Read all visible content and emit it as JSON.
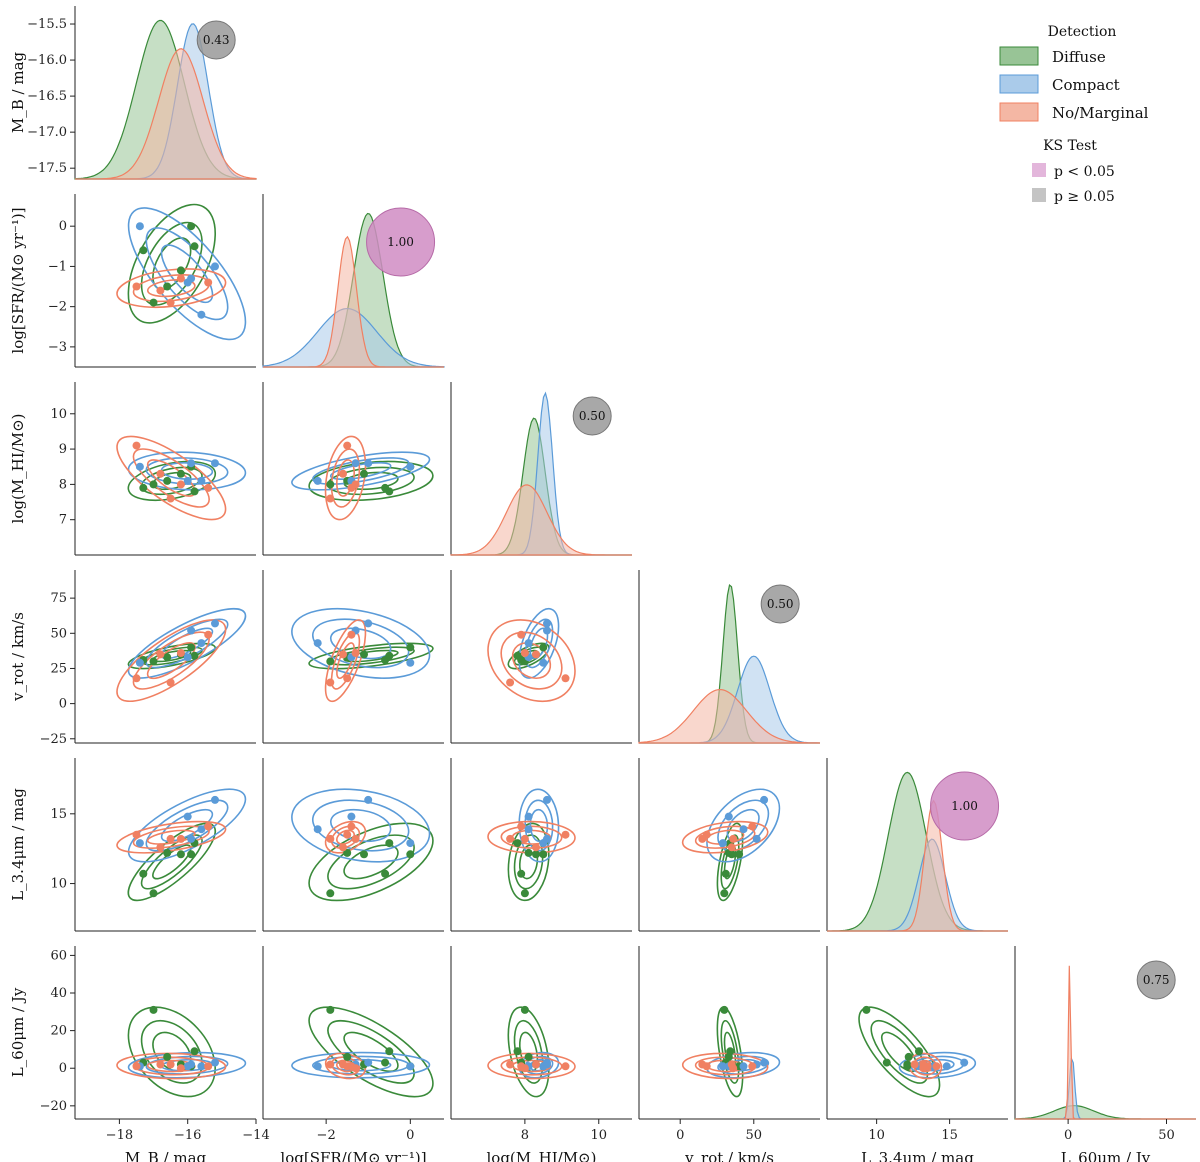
{
  "colors": {
    "diffuse": "#3a8a3a",
    "diffuse_fill": "#98c496",
    "compact": "#5b9bd8",
    "compact_fill": "#aacbea",
    "nomarg": "#f08062",
    "nomarg_fill": "#f4b7a4",
    "ks_sig": "#d08cc3",
    "ks_ns": "#999999"
  },
  "legend": {
    "title": "Detection",
    "items": [
      "Diffuse",
      "Compact",
      "No/Marginal"
    ],
    "ks_title": "KS Test",
    "ks_items": [
      "p < 0.05",
      "p ≥ 0.05"
    ]
  },
  "chart_data": {
    "type": "scatter",
    "description_series": [
      "Diffuse",
      "Compact",
      "No/Marginal"
    ],
    "variables": [
      {
        "xlabel": "M_B / mag",
        "ylabel": "M_B / mag",
        "range": [
          -19.3,
          -14.0
        ],
        "xticks": [
          -18,
          -16,
          -14
        ],
        "xticklabels": [
          "−18",
          "−16",
          "−14"
        ],
        "yticks": [
          -15.5,
          -16.0,
          -16.5,
          -17.0,
          -17.5
        ],
        "yticklabels": [
          "−15.5",
          "−16.0",
          "−16.5",
          "−17.0",
          "−17.5"
        ],
        "yinvert": true,
        "ylim_diag": [
          -17.65,
          -15.25
        ]
      },
      {
        "xlabel": "log[SFR/(M⊙ yr⁻¹)]",
        "ylabel": "log[SFR/(M⊙ yr⁻¹)]",
        "range": [
          -3.5,
          0.8
        ],
        "xticks": [
          -2,
          0
        ],
        "xticklabels": [
          "−2",
          "0"
        ],
        "yticks": [
          0,
          -1,
          -2,
          -3
        ],
        "yticklabels": [
          "0",
          "−1",
          "−2",
          "−3"
        ]
      },
      {
        "xlabel": "log(M_HI/M⊙)",
        "ylabel": "log(M_HI/M⊙)",
        "range": [
          6.0,
          10.9
        ],
        "xticks": [
          8,
          10
        ],
        "xticklabels": [
          "8",
          "10"
        ],
        "yticks": [
          10,
          9,
          8,
          7
        ],
        "yticklabels": [
          "10",
          "9",
          "8",
          "7"
        ]
      },
      {
        "xlabel": "v_rot / km/s",
        "ylabel": "v_rot / km/s",
        "range": [
          -28,
          95
        ],
        "xticks": [
          0,
          50
        ],
        "xticklabels": [
          "0",
          "50"
        ],
        "yticks": [
          75,
          50,
          25,
          0,
          -25
        ],
        "yticklabels": [
          "75",
          "50",
          "25",
          "0",
          "−25"
        ]
      },
      {
        "xlabel": "L_3.4μm / mag",
        "ylabel": "L_3.4μm / mag",
        "range": [
          6.6,
          19.0
        ],
        "xticks": [
          10,
          15
        ],
        "xticklabels": [
          "10",
          "15"
        ],
        "yticks": [
          15,
          10
        ],
        "yticklabels": [
          "15",
          "10"
        ]
      },
      {
        "xlabel": "L_60μm / Jy",
        "ylabel": "L_60μm / Jy",
        "range": [
          -27,
          65
        ],
        "xticks": [
          0,
          50
        ],
        "xticklabels": [
          "0",
          "50"
        ],
        "yticks": [
          60,
          40,
          20,
          0,
          -20
        ],
        "yticklabels": [
          "60",
          "40",
          "20",
          "0",
          "−20"
        ]
      }
    ],
    "ks_values": [
      "0.43",
      "1.00",
      "0.50",
      "0.50",
      "1.00",
      "0.75"
    ],
    "ks_significant": [
      false,
      true,
      false,
      false,
      true,
      false
    ],
    "points": {
      "Diffuse": [
        [
          -17.3,
          -0.6,
          7.9,
          31,
          10.7,
          3
        ],
        [
          -16.6,
          -1.5,
          8.1,
          33,
          12.2,
          6
        ],
        [
          -16.2,
          -1.1,
          8.3,
          35,
          12.1,
          2
        ],
        [
          -17.0,
          -1.9,
          8.0,
          30,
          9.3,
          31
        ],
        [
          -15.8,
          -0.5,
          7.8,
          34,
          12.9,
          9
        ],
        [
          -15.9,
          0.0,
          8.5,
          40,
          12.1,
          1
        ]
      ],
      "Compact": [
        [
          -17.4,
          0.0,
          8.5,
          29,
          12.9,
          1
        ],
        [
          -15.9,
          -1.3,
          8.6,
          52,
          13.2,
          2
        ],
        [
          -15.6,
          -2.2,
          8.1,
          43,
          13.9,
          1
        ],
        [
          -15.2,
          -1.0,
          8.6,
          57,
          16.0,
          3
        ],
        [
          -16.0,
          -1.4,
          8.1,
          33,
          14.8,
          1
        ]
      ],
      "No/Marginal": [
        [
          -17.5,
          -1.5,
          9.1,
          18,
          13.5,
          1
        ],
        [
          -16.5,
          -1.9,
          7.6,
          15,
          13.2,
          2
        ],
        [
          -16.2,
          -1.3,
          8.0,
          36,
          13.2,
          0
        ],
        [
          -15.4,
          -1.4,
          7.9,
          49,
          14.1,
          1
        ],
        [
          -16.8,
          -1.6,
          8.3,
          35,
          12.6,
          2
        ]
      ]
    },
    "densities": [
      {
        "Diffuse": {
          "mean": -16.8,
          "sd": 0.7,
          "peak": 0.95
        },
        "Compact": {
          "mean": -15.85,
          "sd": 0.45,
          "peak": 0.93
        },
        "No/Marginal": {
          "mean": -16.2,
          "sd": 0.65,
          "peak": 0.78
        }
      },
      {
        "Diffuse": {
          "mean": -1.0,
          "sd": 0.35,
          "peak": 0.92
        },
        "Compact": {
          "mean": -1.5,
          "sd": 0.7,
          "peak": 0.35
        },
        "No/Marginal": {
          "mean": -1.5,
          "sd": 0.22,
          "peak": 0.78
        }
      },
      {
        "Diffuse": {
          "mean": 8.25,
          "sd": 0.3,
          "peak": 0.82
        },
        "Compact": {
          "mean": 8.55,
          "sd": 0.2,
          "peak": 0.97
        },
        "No/Marginal": {
          "mean": 8.05,
          "sd": 0.55,
          "peak": 0.42
        }
      },
      {
        "Diffuse": {
          "mean": 34,
          "sd": 5,
          "peak": 0.95
        },
        "Compact": {
          "mean": 50,
          "sd": 11,
          "peak": 0.52
        },
        "No/Marginal": {
          "mean": 27,
          "sd": 18,
          "peak": 0.32
        }
      },
      {
        "Diffuse": {
          "mean": 12.1,
          "sd": 1.3,
          "peak": 0.95
        },
        "Compact": {
          "mean": 13.8,
          "sd": 0.9,
          "peak": 0.55
        },
        "No/Marginal": {
          "mean": 13.9,
          "sd": 0.6,
          "peak": 0.78
        }
      },
      {
        "Diffuse": {
          "mean": 3,
          "sd": 10,
          "peak": 0.08
        },
        "Compact": {
          "mean": 2,
          "sd": 1.3,
          "peak": 0.38
        },
        "No/Marginal": {
          "mean": 0.8,
          "sd": 0.6,
          "peak": 0.97
        }
      }
    ],
    "legend_position": "top-right",
    "grid": false
  }
}
